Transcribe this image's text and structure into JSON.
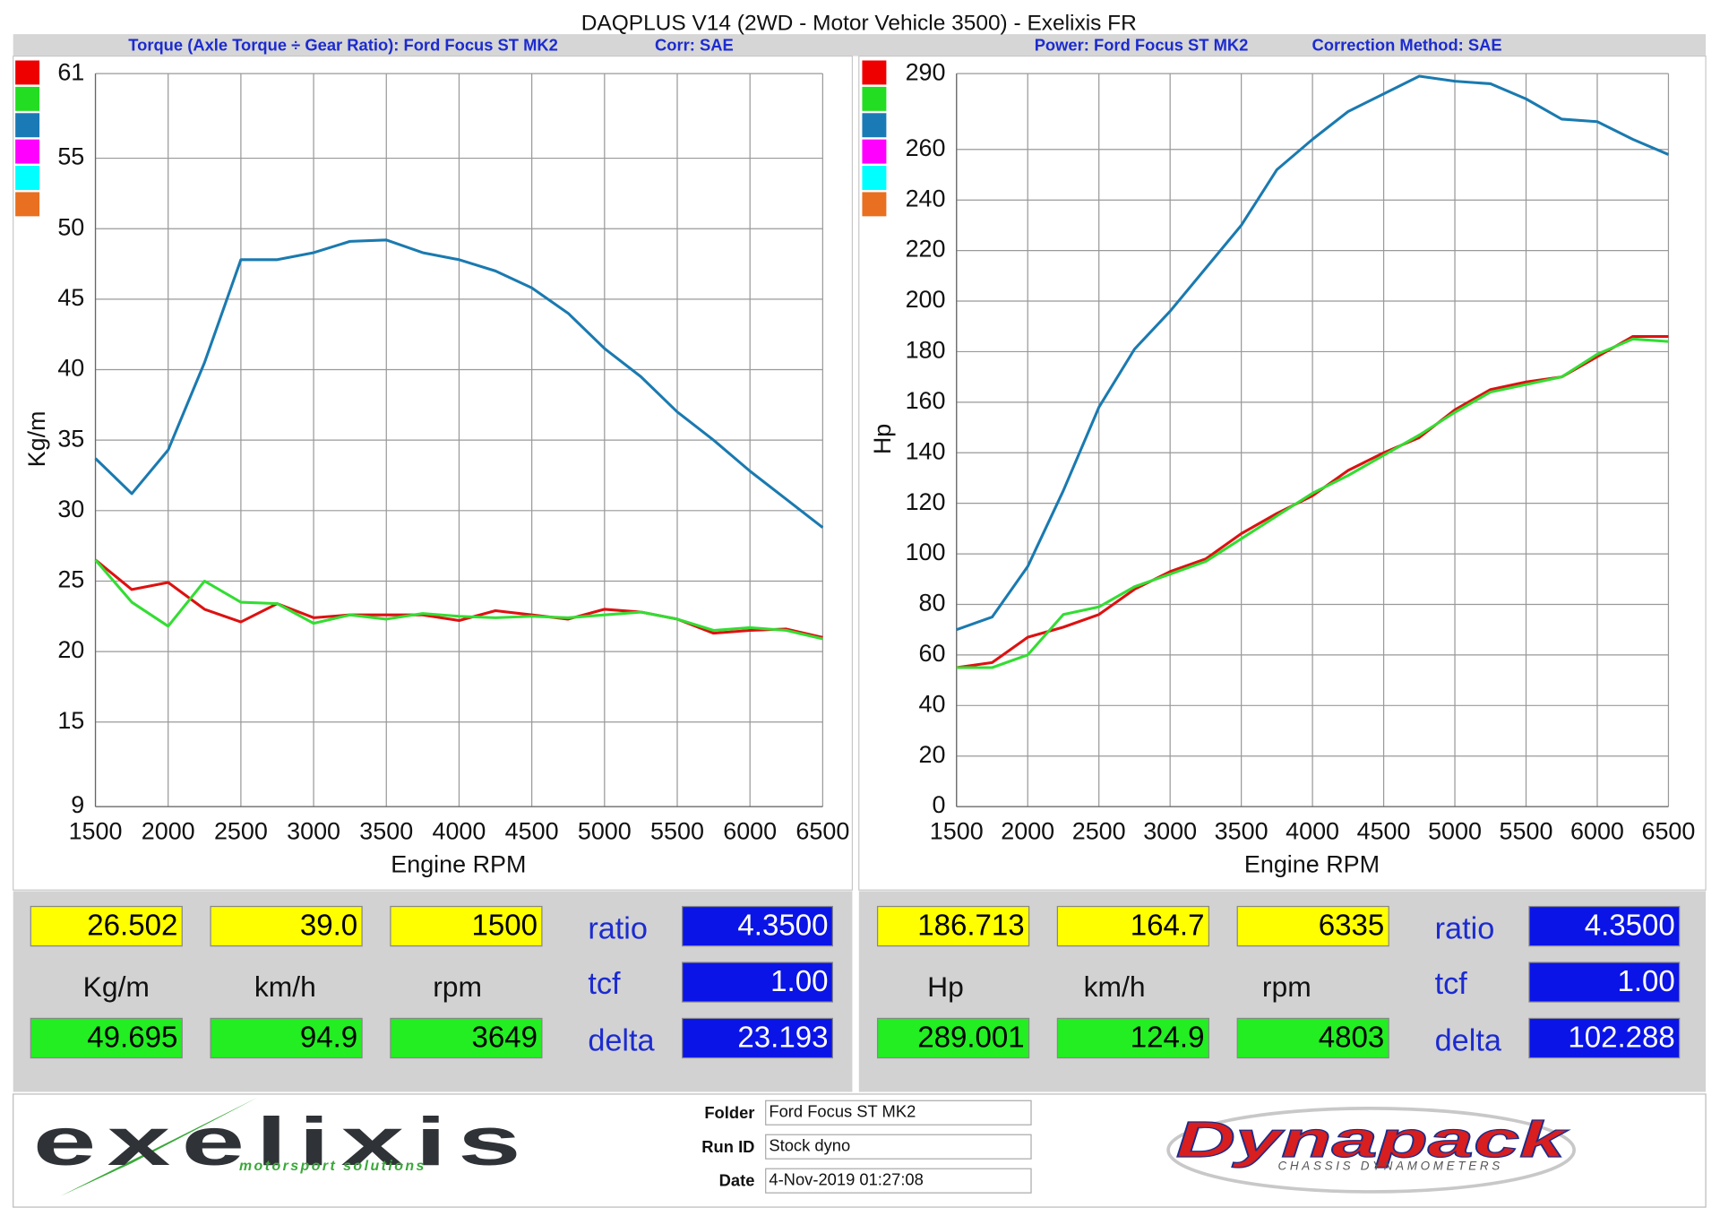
{
  "header": {
    "title": "DAQPLUS V14 (2WD - Motor Vehicle 3500) - Exelixis FR"
  },
  "chart_data": [
    {
      "type": "line",
      "title": "Torque (Axle Torque ÷ Gear Ratio): Ford Focus ST MK2",
      "subtitle": "Corr: SAE",
      "xlabel": "Engine RPM",
      "ylabel": "Kg/m",
      "x": [
        1500,
        1750,
        2000,
        2250,
        2500,
        2750,
        3000,
        3250,
        3500,
        3750,
        4000,
        4250,
        4500,
        4750,
        5000,
        5250,
        5500,
        5750,
        6000,
        6250,
        6500
      ],
      "series": [
        {
          "color": "#1a7ab0",
          "values": [
            33.7,
            31.2,
            34.3,
            40.5,
            47.8,
            47.8,
            48.3,
            49.1,
            49.2,
            48.3,
            47.8,
            47.0,
            45.8,
            44.0,
            41.5,
            39.5,
            37.0,
            35.0,
            32.8,
            30.8,
            28.8
          ]
        },
        {
          "color": "#dd1111",
          "values": [
            26.5,
            24.4,
            24.9,
            23.0,
            22.1,
            23.4,
            22.4,
            22.6,
            22.6,
            22.6,
            22.2,
            22.9,
            22.6,
            22.3,
            23.0,
            22.8,
            22.3,
            21.3,
            21.5,
            21.6,
            21.0
          ]
        },
        {
          "color": "#33dd33",
          "values": [
            26.5,
            23.5,
            21.8,
            25.0,
            23.5,
            23.4,
            22.0,
            22.6,
            22.3,
            22.7,
            22.5,
            22.4,
            22.5,
            22.4,
            22.6,
            22.8,
            22.3,
            21.5,
            21.7,
            21.5,
            20.9
          ]
        }
      ],
      "legend_colors": [
        "#ee0000",
        "#22dd22",
        "#1a7ab5",
        "#ff00ff",
        "#00ffff",
        "#e87020"
      ],
      "xlim": [
        1500,
        6500
      ],
      "ylim": [
        9,
        61
      ],
      "xticks": [
        1500,
        2000,
        2500,
        3000,
        3500,
        4000,
        4500,
        5000,
        5500,
        6000,
        6500
      ],
      "yticks": [
        9,
        15,
        20,
        25,
        30,
        35,
        40,
        45,
        50,
        55,
        61
      ],
      "grid": true
    },
    {
      "type": "line",
      "title": "Power: Ford Focus ST MK2",
      "subtitle": "Correction Method: SAE",
      "xlabel": "Engine RPM",
      "ylabel": "Hp",
      "x": [
        1500,
        1750,
        2000,
        2250,
        2500,
        2750,
        3000,
        3250,
        3500,
        3750,
        4000,
        4250,
        4500,
        4750,
        5000,
        5250,
        5500,
        5750,
        6000,
        6250,
        6500
      ],
      "series": [
        {
          "color": "#1a7ab0",
          "values": [
            70,
            75,
            95,
            125,
            158,
            181,
            196,
            213,
            230,
            252,
            264,
            275,
            282,
            289,
            287,
            286,
            280,
            272,
            271,
            264,
            258
          ]
        },
        {
          "color": "#dd1111",
          "values": [
            55,
            57,
            67,
            71,
            76,
            86,
            93,
            98,
            108,
            116,
            123,
            133,
            140,
            146,
            157,
            165,
            168,
            170,
            178,
            186,
            186
          ]
        },
        {
          "color": "#33dd33",
          "values": [
            55,
            55,
            60,
            76,
            79,
            87,
            92,
            97,
            106,
            115,
            124,
            131,
            139,
            147,
            156,
            164,
            167,
            170,
            179,
            185,
            184
          ]
        }
      ],
      "legend_colors": [
        "#ee0000",
        "#22dd22",
        "#1a7ab5",
        "#ff00ff",
        "#00ffff",
        "#e87020"
      ],
      "xlim": [
        1500,
        6500
      ],
      "ylim": [
        0,
        290
      ],
      "xticks": [
        1500,
        2000,
        2500,
        3000,
        3500,
        4000,
        4500,
        5000,
        5500,
        6000,
        6500
      ],
      "yticks": [
        0,
        20,
        40,
        60,
        80,
        100,
        120,
        140,
        160,
        180,
        200,
        220,
        240,
        260,
        290
      ],
      "grid": true
    }
  ],
  "readouts": [
    {
      "current": [
        "26.502",
        "39.0",
        "1500"
      ],
      "units": [
        "Kg/m",
        "km/h",
        "rpm"
      ],
      "peak": [
        "49.695",
        "94.9",
        "3649"
      ],
      "labels": [
        "ratio",
        "tcf",
        "delta"
      ],
      "params": [
        "4.3500",
        "1.00",
        "23.193"
      ]
    },
    {
      "current": [
        "186.713",
        "164.7",
        "6335"
      ],
      "units": [
        "Hp",
        "km/h",
        "rpm"
      ],
      "peak": [
        "289.001",
        "124.9",
        "4803"
      ],
      "labels": [
        "ratio",
        "tcf",
        "delta"
      ],
      "params": [
        "4.3500",
        "1.00",
        "102.288"
      ]
    }
  ],
  "footer": {
    "logo_left": "exelixis",
    "logo_left_tagline": "motorsport solutions",
    "fields": [
      {
        "label": "Folder",
        "value": "Ford Focus ST MK2"
      },
      {
        "label": "Run ID",
        "value": "Stock dyno"
      },
      {
        "label": "Date",
        "value": "4-Nov-2019 01:27:08"
      }
    ],
    "logo_right": "Dynapack",
    "logo_right_tagline": "CHASSIS DYNAMOMETERS"
  }
}
